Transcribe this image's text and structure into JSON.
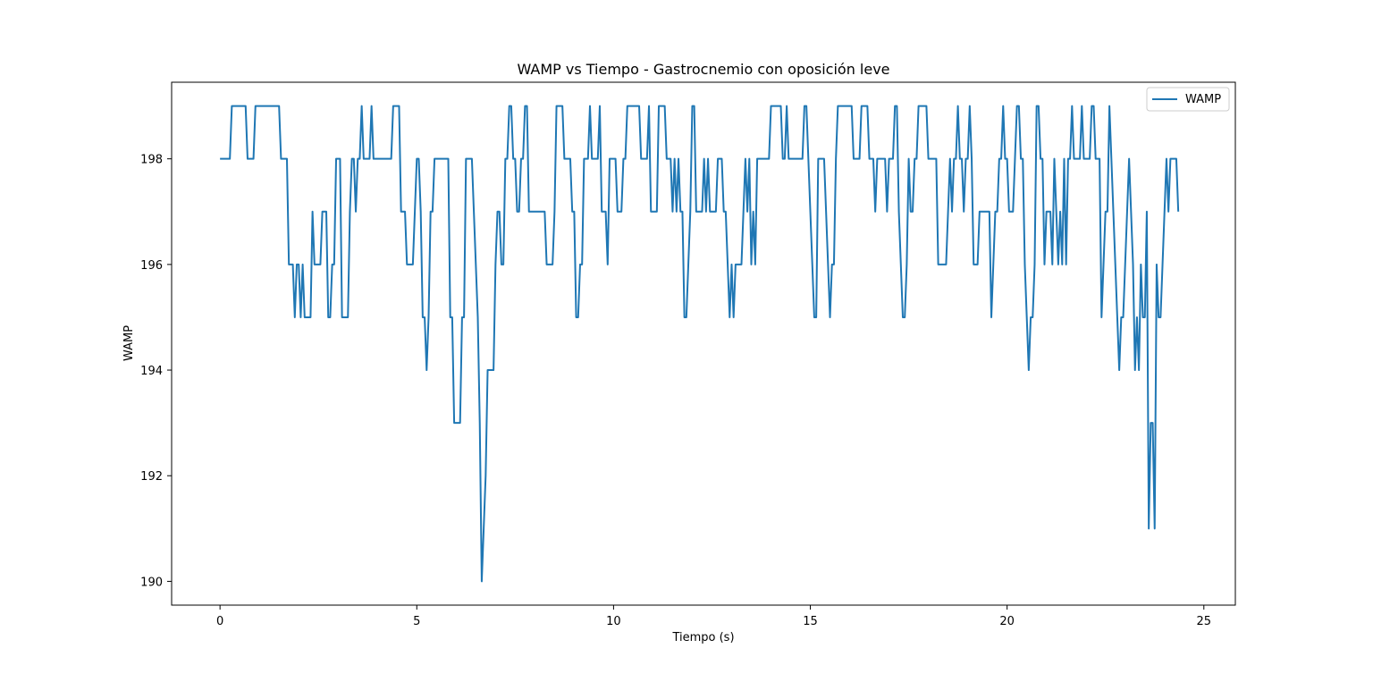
{
  "chart_data": {
    "type": "line",
    "title": "WAMP vs Tiempo - Gastrocnemio con oposición leve",
    "xlabel": "Tiempo (s)",
    "ylabel": "WAMP",
    "xlim": [
      -1.23,
      25.8
    ],
    "ylim": [
      189.55,
      199.45
    ],
    "xticks": [
      0,
      5,
      10,
      15,
      20,
      25
    ],
    "yticks": [
      190,
      192,
      194,
      196,
      198
    ],
    "grid": false,
    "legend": {
      "position": "upper-right",
      "entries": [
        "WAMP"
      ]
    },
    "series": [
      {
        "name": "WAMP",
        "color": "#1f77b4",
        "dt": 0.05,
        "values": [
          198,
          198,
          198,
          198,
          198,
          198,
          199,
          199,
          199,
          199,
          199,
          199,
          199,
          199,
          198,
          198,
          198,
          198,
          199,
          199,
          199,
          199,
          199,
          199,
          199,
          199,
          199,
          199,
          199,
          199,
          199,
          198,
          198,
          198,
          198,
          196,
          196,
          196,
          195,
          196,
          196,
          195,
          196,
          195,
          195,
          195,
          195,
          197,
          196,
          196,
          196,
          196,
          197,
          197,
          197,
          195,
          195,
          196,
          196,
          198,
          198,
          198,
          195,
          195,
          195,
          195,
          197,
          198,
          198,
          197,
          198,
          198,
          199,
          198,
          198,
          198,
          198,
          199,
          198,
          198,
          198,
          198,
          198,
          198,
          198,
          198,
          198,
          198,
          199,
          199,
          199,
          199,
          197,
          197,
          197,
          196,
          196,
          196,
          196,
          197,
          198,
          198,
          197,
          195,
          195,
          194,
          195,
          197,
          197,
          198,
          198,
          198,
          198,
          198,
          198,
          198,
          198,
          195,
          195,
          193,
          193,
          193,
          193,
          195,
          195,
          198,
          198,
          198,
          198,
          197,
          196,
          195,
          193,
          190,
          191,
          192,
          194,
          194,
          194,
          194,
          196,
          197,
          197,
          196,
          196,
          198,
          198,
          199,
          199,
          198,
          198,
          197,
          197,
          198,
          198,
          199,
          199,
          197,
          197,
          197,
          197,
          197,
          197,
          197,
          197,
          197,
          196,
          196,
          196,
          196,
          197,
          199,
          199,
          199,
          199,
          198,
          198,
          198,
          198,
          197,
          197,
          195,
          195,
          196,
          196,
          198,
          198,
          198,
          199,
          198,
          198,
          198,
          198,
          199,
          197,
          197,
          197,
          196,
          198,
          198,
          198,
          198,
          197,
          197,
          197,
          198,
          198,
          199,
          199,
          199,
          199,
          199,
          199,
          199,
          198,
          198,
          198,
          198,
          199,
          197,
          197,
          197,
          197,
          199,
          199,
          199,
          199,
          198,
          198,
          198,
          197,
          198,
          197,
          198,
          197,
          197,
          195,
          195,
          196,
          197,
          199,
          199,
          197,
          197,
          197,
          197,
          198,
          197,
          198,
          197,
          197,
          197,
          197,
          198,
          198,
          198,
          197,
          197,
          196,
          195,
          196,
          195,
          196,
          196,
          196,
          196,
          197,
          198,
          197,
          198,
          196,
          197,
          196,
          198,
          198,
          198,
          198,
          198,
          198,
          198,
          199,
          199,
          199,
          199,
          199,
          199,
          198,
          198,
          199,
          198,
          198,
          198,
          198,
          198,
          198,
          198,
          198,
          199,
          199,
          198,
          197,
          196,
          195,
          195,
          198,
          198,
          198,
          198,
          197,
          196,
          195,
          196,
          196,
          198,
          199,
          199,
          199,
          199,
          199,
          199,
          199,
          199,
          198,
          198,
          198,
          198,
          199,
          199,
          199,
          199,
          198,
          198,
          198,
          197,
          198,
          198,
          198,
          198,
          198,
          197,
          198,
          198,
          198,
          199,
          199,
          197,
          196,
          195,
          195,
          196,
          198,
          197,
          197,
          198,
          198,
          199,
          199,
          199,
          199,
          199,
          198,
          198,
          198,
          198,
          198,
          196,
          196,
          196,
          196,
          196,
          197,
          198,
          197,
          198,
          198,
          199,
          198,
          198,
          197,
          198,
          198,
          199,
          198,
          196,
          196,
          196,
          197,
          197,
          197,
          197,
          197,
          197,
          195,
          196,
          197,
          197,
          198,
          198,
          199,
          198,
          198,
          197,
          197,
          197,
          198,
          199,
          199,
          198,
          198,
          196,
          195,
          194,
          195,
          195,
          196,
          199,
          199,
          198,
          198,
          196,
          197,
          197,
          197,
          196,
          198,
          197,
          196,
          197,
          196,
          198,
          196,
          198,
          198,
          199,
          198,
          198,
          198,
          198,
          199,
          198,
          198,
          198,
          198,
          199,
          199,
          198,
          198,
          198,
          195,
          196,
          197,
          197,
          199,
          198,
          197,
          196,
          195,
          194,
          195,
          195,
          196,
          197,
          198,
          197,
          196,
          194,
          195,
          194,
          196,
          195,
          195,
          197,
          191,
          193,
          193,
          191,
          196,
          195,
          195,
          196,
          197,
          198,
          197,
          198,
          198,
          198,
          198,
          197
        ]
      }
    ]
  }
}
